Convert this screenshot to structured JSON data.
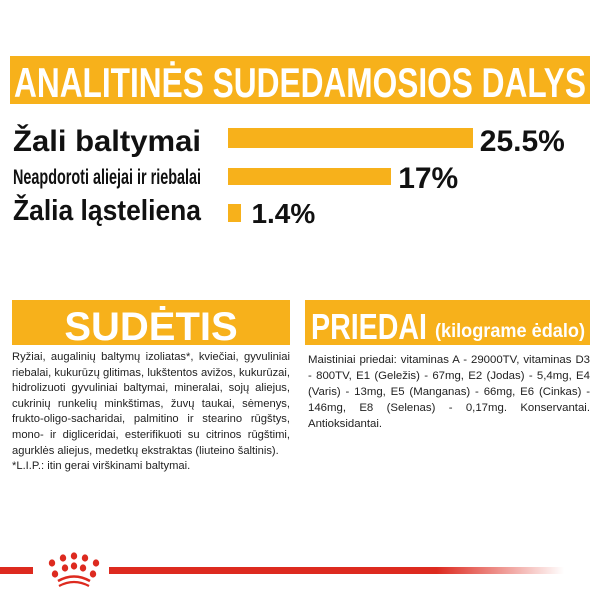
{
  "analysis": {
    "title": "ANALITINĖS SUDEDAMOSIOS DALYS",
    "items": [
      {
        "label": "Žali baltymai",
        "value": 25.5,
        "display": "25.5%"
      },
      {
        "label": "Neapdoroti aliejai ir riebalai",
        "value": 17,
        "display": "17%"
      },
      {
        "label": "Žalia ląsteliena",
        "value": 1.4,
        "display": "1.4%"
      }
    ]
  },
  "composition": {
    "title": "SUDĖTIS",
    "text": "Ryžiai, augalinių baltymų izoliatas*, kviečiai, gyvuliniai riebalai, kukurūzų glitimas, lukštentos avižos, kukurūzai, hidrolizuoti gyvuliniai baltymai, mineralai, sojų aliejus, cukrinių runkelių minkštimas, žuvų taukai, sėmenys, frukto-oligo-sacharidai, palmitino ir stearino rūgštys, mono- ir digliceridai, esterifikuoti su citrinos rūgštimi, agurklės aliejus, medetkų ekstraktas (liuteino šaltinis).",
    "footnote": "*L.I.P.: itin gerai virškinami baltymai."
  },
  "additives": {
    "title": "PRIEDAI",
    "subtitle": "(kilograme ėdalo)",
    "text": "Maistiniai priedai: vitaminas A - 29000TV, vitaminas D3 - 800TV, E1 (Geležis) - 67mg, E2 (Jodas) - 5,4mg, E4 (Varis) - 13mg, E5 (Manganas) - 66mg, E6 (Cinkas) - 146mg, E8 (Selenas) - 0,17mg. Konservantai. Antioksidantai."
  },
  "colors": {
    "accent": "#F7B11B",
    "brand_red": "#DD2A1F"
  },
  "logo": {
    "name": "crown-icon"
  }
}
